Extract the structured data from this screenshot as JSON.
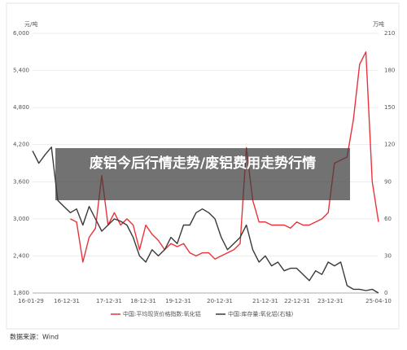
{
  "chart_data": {
    "type": "line",
    "y_unit": "元/吨",
    "y2_unit": "万吨",
    "xticks": [
      "16-01-29",
      "16-12-31",
      "17-12-31",
      "18-12-31",
      "19-12-31",
      "20-12-31",
      "21-12-31",
      "22-12-31",
      "23-12-31",
      "25-04-10"
    ],
    "ylim": [
      1800,
      6000
    ],
    "yticks": [
      {
        "value": 1800,
        "label": "1,800"
      },
      {
        "value": 2400,
        "label": "2,400"
      },
      {
        "value": 3000,
        "label": "3,000"
      },
      {
        "value": 3600,
        "label": "3,600"
      },
      {
        "value": 4200,
        "label": "4,200"
      },
      {
        "value": 4800,
        "label": "4,800"
      },
      {
        "value": 5400,
        "label": "5,400"
      },
      {
        "value": 6000,
        "label": "6,000"
      }
    ],
    "y2lim": [
      0,
      210
    ],
    "y2ticks": [
      0,
      30,
      60,
      90,
      120,
      150,
      180,
      210
    ],
    "series": [
      {
        "name": "中国:平均现货价格指数:氧化铝",
        "color": "#e8333a",
        "values": [
          null,
          null,
          null,
          null,
          null,
          null,
          3000,
          2950,
          2300,
          2700,
          2850,
          3700,
          2900,
          3100,
          2900,
          3000,
          2900,
          2500,
          2900,
          2750,
          2650,
          2500,
          2600,
          2550,
          2600,
          2450,
          2400,
          2450,
          2450,
          2350,
          2400,
          2450,
          2500,
          2600,
          4150,
          3300,
          2950,
          2950,
          2900,
          2900,
          2900,
          2850,
          2950,
          2900,
          2900,
          2950,
          3000,
          3100,
          3900,
          3950,
          4000,
          4600,
          5500,
          5700,
          3600,
          2950
        ]
      },
      {
        "name": "中国:库存量:氧化铝(右轴)",
        "color": "#3a3a3a",
        "axis": "y2",
        "values": [
          115,
          105,
          112,
          118,
          75,
          70,
          65,
          68,
          55,
          70,
          60,
          50,
          55,
          60,
          58,
          55,
          45,
          30,
          25,
          35,
          30,
          35,
          45,
          40,
          55,
          55,
          65,
          68,
          65,
          60,
          45,
          35,
          40,
          45,
          55,
          35,
          25,
          30,
          22,
          25,
          18,
          20,
          20,
          15,
          10,
          18,
          15,
          25,
          22,
          25,
          6,
          3,
          3,
          2,
          3,
          0
        ]
      }
    ],
    "overlay_title": "废铝今后行情走势/废铝费用走势行情",
    "source": "数据来源：Wind"
  }
}
